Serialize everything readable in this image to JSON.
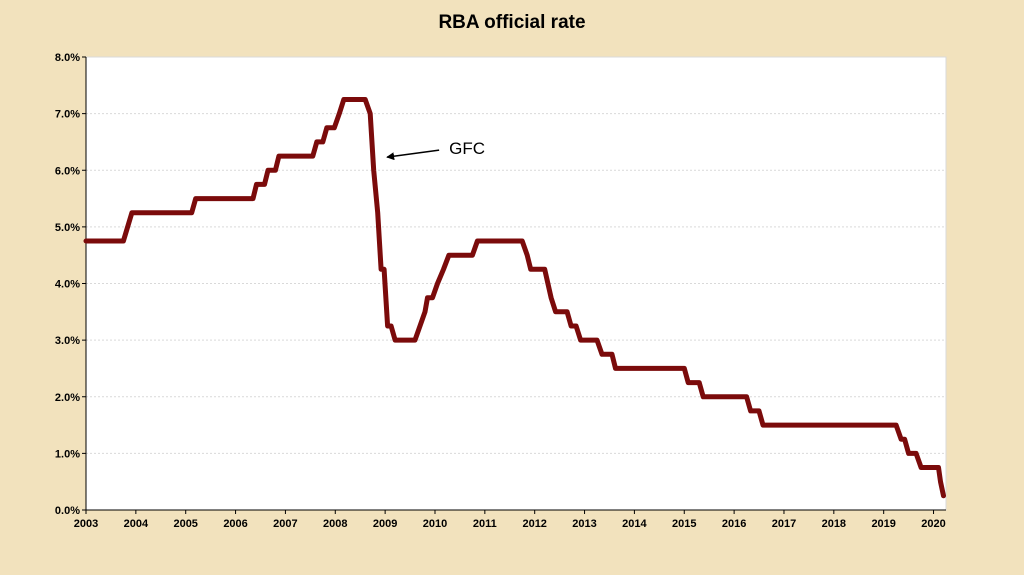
{
  "chart_data": {
    "type": "line",
    "title": "RBA official rate",
    "xlabel": "",
    "ylabel": "",
    "xlim": [
      2003,
      2020.25
    ],
    "ylim": [
      0,
      8
    ],
    "grid": true,
    "legend": "none",
    "x_ticks": [
      "2003",
      "2004",
      "2005",
      "2006",
      "2007",
      "2008",
      "2009",
      "2010",
      "2011",
      "2012",
      "2013",
      "2014",
      "2015",
      "2016",
      "2017",
      "2018",
      "2019",
      "2020"
    ],
    "y_ticks": [
      "0.0%",
      "1.0%",
      "2.0%",
      "3.0%",
      "4.0%",
      "5.0%",
      "6.0%",
      "7.0%",
      "8.0%"
    ],
    "series": [
      {
        "name": "RBA official rate",
        "color": "#7b0b0b",
        "points": [
          [
            2003.0,
            4.75
          ],
          [
            2003.75,
            4.75
          ],
          [
            2003.92,
            5.25
          ],
          [
            2005.12,
            5.25
          ],
          [
            2005.2,
            5.5
          ],
          [
            2006.35,
            5.5
          ],
          [
            2006.42,
            5.75
          ],
          [
            2006.58,
            5.75
          ],
          [
            2006.65,
            6.0
          ],
          [
            2006.8,
            6.0
          ],
          [
            2006.87,
            6.25
          ],
          [
            2007.55,
            6.25
          ],
          [
            2007.63,
            6.5
          ],
          [
            2007.75,
            6.5
          ],
          [
            2007.83,
            6.75
          ],
          [
            2007.98,
            6.75
          ],
          [
            2008.08,
            7.0
          ],
          [
            2008.17,
            7.25
          ],
          [
            2008.6,
            7.25
          ],
          [
            2008.7,
            7.0
          ],
          [
            2008.77,
            6.0
          ],
          [
            2008.85,
            5.25
          ],
          [
            2008.92,
            4.25
          ],
          [
            2008.98,
            4.25
          ],
          [
            2009.05,
            3.25
          ],
          [
            2009.12,
            3.25
          ],
          [
            2009.2,
            3.0
          ],
          [
            2009.6,
            3.0
          ],
          [
            2009.8,
            3.5
          ],
          [
            2009.85,
            3.75
          ],
          [
            2009.95,
            3.75
          ],
          [
            2010.05,
            4.0
          ],
          [
            2010.17,
            4.25
          ],
          [
            2010.28,
            4.5
          ],
          [
            2010.75,
            4.5
          ],
          [
            2010.85,
            4.75
          ],
          [
            2011.75,
            4.75
          ],
          [
            2011.85,
            4.5
          ],
          [
            2011.92,
            4.25
          ],
          [
            2012.2,
            4.25
          ],
          [
            2012.33,
            3.75
          ],
          [
            2012.42,
            3.5
          ],
          [
            2012.65,
            3.5
          ],
          [
            2012.73,
            3.25
          ],
          [
            2012.83,
            3.25
          ],
          [
            2012.92,
            3.0
          ],
          [
            2013.25,
            3.0
          ],
          [
            2013.35,
            2.75
          ],
          [
            2013.55,
            2.75
          ],
          [
            2013.62,
            2.5
          ],
          [
            2015.0,
            2.5
          ],
          [
            2015.08,
            2.25
          ],
          [
            2015.3,
            2.25
          ],
          [
            2015.38,
            2.0
          ],
          [
            2016.25,
            2.0
          ],
          [
            2016.33,
            1.75
          ],
          [
            2016.5,
            1.75
          ],
          [
            2016.58,
            1.5
          ],
          [
            2019.25,
            1.5
          ],
          [
            2019.35,
            1.25
          ],
          [
            2019.42,
            1.25
          ],
          [
            2019.5,
            1.0
          ],
          [
            2019.65,
            1.0
          ],
          [
            2019.75,
            0.75
          ],
          [
            2020.1,
            0.75
          ],
          [
            2020.14,
            0.5
          ],
          [
            2020.2,
            0.25
          ]
        ]
      }
    ],
    "annotations": [
      {
        "text": "GFC",
        "arrow_to": [
          2009.0,
          6.25
        ]
      }
    ]
  }
}
